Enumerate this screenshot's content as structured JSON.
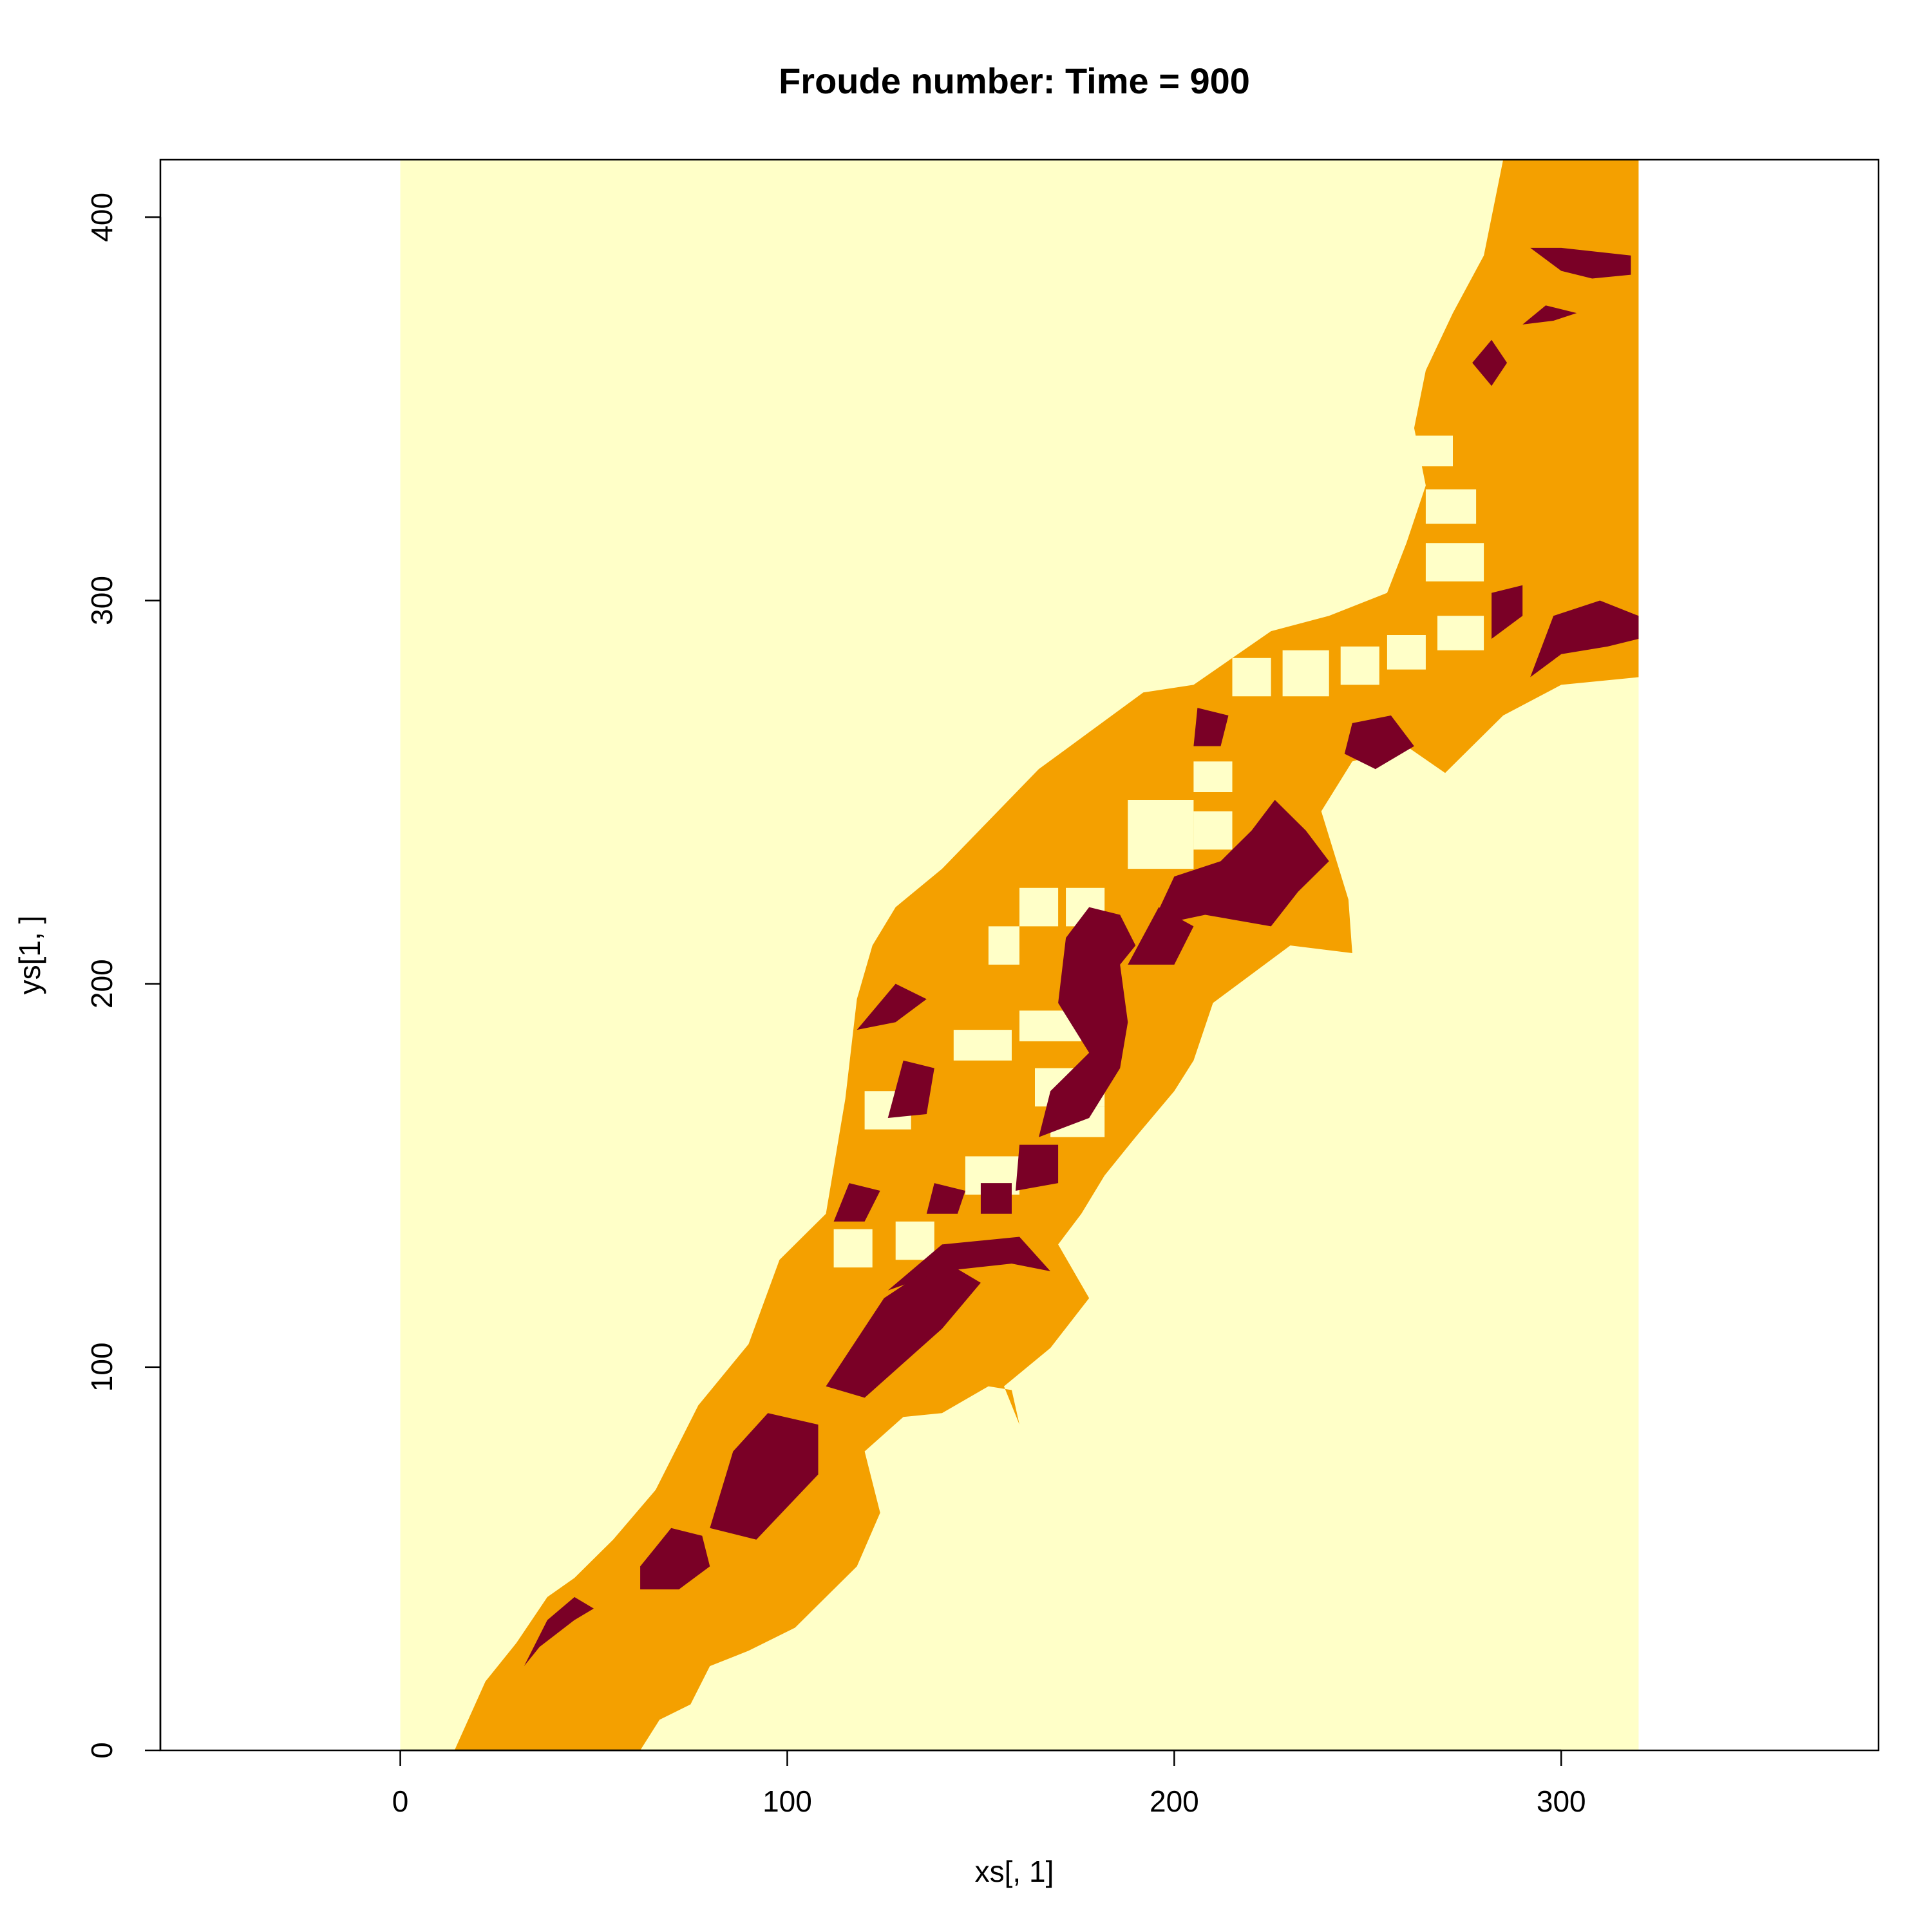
{
  "chart_data": {
    "type": "heatmap",
    "title": "Froude number: Time = 900",
    "xlabel": "xs[, 1]",
    "ylabel": "ys[1, ]",
    "xlim": [
      -62,
      382
    ],
    "ylim": [
      0,
      415
    ],
    "grid": false,
    "x_ticks": [
      0,
      100,
      200,
      300
    ],
    "y_ticks": [
      0,
      100,
      200,
      300,
      400
    ],
    "x_tick_labels": [
      "0",
      "100",
      "200",
      "300"
    ],
    "y_tick_labels": [
      "0",
      "100",
      "200",
      "300",
      "400"
    ],
    "raster_extent": {
      "x": [
        0,
        320
      ],
      "y": [
        0,
        415
      ]
    },
    "colors": {
      "low": "#FFFFC8",
      "mid": "#F4A000",
      "high": "#7A0026"
    },
    "regions": {
      "channel": [
        [
          14,
          0
        ],
        [
          62,
          0
        ],
        [
          67,
          8
        ],
        [
          75,
          12
        ],
        [
          80,
          22
        ],
        [
          90,
          26
        ],
        [
          102,
          32
        ],
        [
          110,
          40
        ],
        [
          118,
          48
        ],
        [
          124,
          62
        ],
        [
          120,
          78
        ],
        [
          130,
          87
        ],
        [
          140,
          88
        ],
        [
          152,
          95
        ],
        [
          158,
          94
        ],
        [
          160,
          85
        ],
        [
          156,
          95
        ],
        [
          168,
          105
        ],
        [
          178,
          118
        ],
        [
          170,
          132
        ],
        [
          176,
          140
        ],
        [
          182,
          150
        ],
        [
          190,
          160
        ],
        [
          200,
          172
        ],
        [
          205,
          180
        ],
        [
          210,
          195
        ],
        [
          230,
          210
        ],
        [
          246,
          208
        ],
        [
          245,
          222
        ],
        [
          238,
          245
        ],
        [
          246,
          258
        ],
        [
          260,
          262
        ],
        [
          270,
          255
        ],
        [
          285,
          270
        ],
        [
          300,
          278
        ],
        [
          320,
          280
        ],
        [
          320,
          415
        ],
        [
          285,
          415
        ],
        [
          280,
          390
        ],
        [
          272,
          375
        ],
        [
          265,
          360
        ],
        [
          262,
          345
        ],
        [
          265,
          330
        ],
        [
          260,
          315
        ],
        [
          255,
          302
        ],
        [
          240,
          296
        ],
        [
          225,
          292
        ],
        [
          205,
          278
        ],
        [
          192,
          276
        ],
        [
          165,
          256
        ],
        [
          140,
          230
        ],
        [
          128,
          220
        ],
        [
          122,
          210
        ],
        [
          118,
          196
        ],
        [
          115,
          170
        ],
        [
          110,
          140
        ],
        [
          98,
          128
        ],
        [
          90,
          106
        ],
        [
          77,
          90
        ],
        [
          66,
          68
        ],
        [
          55,
          55
        ],
        [
          45,
          45
        ],
        [
          38,
          40
        ],
        [
          30,
          28
        ],
        [
          22,
          18
        ],
        [
          14,
          0
        ]
      ],
      "hotspots": [
        [
          [
            32,
            22
          ],
          [
            36,
            27
          ],
          [
            45,
            34
          ],
          [
            50,
            37
          ],
          [
            45,
            40
          ],
          [
            38,
            34
          ],
          [
            32,
            22
          ]
        ],
        [
          [
            62,
            42
          ],
          [
            72,
            42
          ],
          [
            80,
            48
          ],
          [
            78,
            56
          ],
          [
            70,
            58
          ],
          [
            62,
            48
          ],
          [
            62,
            42
          ]
        ],
        [
          [
            80,
            58
          ],
          [
            92,
            55
          ],
          [
            108,
            72
          ],
          [
            108,
            85
          ],
          [
            95,
            88
          ],
          [
            86,
            78
          ],
          [
            80,
            58
          ]
        ],
        [
          [
            110,
            95
          ],
          [
            120,
            92
          ],
          [
            140,
            110
          ],
          [
            150,
            122
          ],
          [
            140,
            128
          ],
          [
            125,
            118
          ],
          [
            110,
            95
          ]
        ],
        [
          [
            126,
            120
          ],
          [
            140,
            125
          ],
          [
            158,
            127
          ],
          [
            168,
            125
          ],
          [
            160,
            134
          ],
          [
            140,
            132
          ],
          [
            126,
            120
          ]
        ],
        [
          [
            112,
            138
          ],
          [
            120,
            138
          ],
          [
            124,
            146
          ],
          [
            116,
            148
          ],
          [
            112,
            138
          ]
        ],
        [
          [
            126,
            165
          ],
          [
            136,
            166
          ],
          [
            138,
            178
          ],
          [
            130,
            180
          ],
          [
            126,
            165
          ]
        ],
        [
          [
            118,
            188
          ],
          [
            128,
            190
          ],
          [
            136,
            196
          ],
          [
            128,
            200
          ],
          [
            118,
            188
          ]
        ],
        [
          [
            165,
            160
          ],
          [
            178,
            165
          ],
          [
            186,
            178
          ],
          [
            188,
            190
          ],
          [
            186,
            205
          ],
          [
            190,
            210
          ],
          [
            186,
            218
          ],
          [
            178,
            220
          ],
          [
            172,
            212
          ],
          [
            170,
            195
          ],
          [
            178,
            182
          ],
          [
            168,
            172
          ],
          [
            165,
            160
          ]
        ],
        [
          [
            188,
            205
          ],
          [
            200,
            205
          ],
          [
            205,
            215
          ],
          [
            196,
            220
          ],
          [
            188,
            205
          ]
        ],
        [
          [
            194,
            215
          ],
          [
            208,
            218
          ],
          [
            225,
            215
          ],
          [
            232,
            224
          ],
          [
            240,
            232
          ],
          [
            234,
            240
          ],
          [
            226,
            248
          ],
          [
            220,
            240
          ],
          [
            212,
            232
          ],
          [
            200,
            228
          ],
          [
            194,
            215
          ]
        ],
        [
          [
            244,
            260
          ],
          [
            252,
            256
          ],
          [
            262,
            262
          ],
          [
            256,
            270
          ],
          [
            246,
            268
          ],
          [
            244,
            260
          ]
        ],
        [
          [
            292,
            280
          ],
          [
            300,
            286
          ],
          [
            312,
            288
          ],
          [
            320,
            290
          ],
          [
            320,
            296
          ],
          [
            310,
            300
          ],
          [
            298,
            296
          ],
          [
            292,
            280
          ]
        ],
        [
          [
            282,
            290
          ],
          [
            290,
            296
          ],
          [
            290,
            304
          ],
          [
            282,
            302
          ],
          [
            282,
            290
          ]
        ],
        [
          [
            292,
            392
          ],
          [
            300,
            386
          ],
          [
            308,
            384
          ],
          [
            318,
            385
          ],
          [
            318,
            390
          ],
          [
            300,
            392
          ],
          [
            292,
            392
          ]
        ],
        [
          [
            277,
            362
          ],
          [
            282,
            356
          ],
          [
            286,
            362
          ],
          [
            282,
            368
          ],
          [
            277,
            362
          ]
        ],
        [
          [
            290,
            372
          ],
          [
            298,
            373
          ],
          [
            304,
            375
          ],
          [
            296,
            377
          ],
          [
            290,
            372
          ]
        ],
        [
          [
            205,
            262
          ],
          [
            212,
            262
          ],
          [
            214,
            270
          ],
          [
            206,
            272
          ],
          [
            205,
            262
          ]
        ],
        [
          [
            136,
            140
          ],
          [
            144,
            140
          ],
          [
            146,
            146
          ],
          [
            138,
            148
          ],
          [
            136,
            140
          ]
        ],
        [
          [
            159,
            146
          ],
          [
            170,
            148
          ],
          [
            170,
            158
          ],
          [
            160,
            158
          ],
          [
            159,
            146
          ]
        ],
        [
          [
            150,
            140
          ],
          [
            158,
            140
          ],
          [
            158,
            148
          ],
          [
            150,
            148
          ],
          [
            150,
            140
          ]
        ]
      ],
      "blocks": [
        [
          [
            215,
            275
          ],
          [
            225,
            275
          ],
          [
            225,
            285
          ],
          [
            215,
            285
          ],
          [
            215,
            275
          ]
        ],
        [
          [
            228,
            275
          ],
          [
            240,
            275
          ],
          [
            240,
            287
          ],
          [
            228,
            287
          ],
          [
            228,
            275
          ]
        ],
        [
          [
            243,
            278
          ],
          [
            253,
            278
          ],
          [
            253,
            288
          ],
          [
            243,
            288
          ],
          [
            243,
            278
          ]
        ],
        [
          [
            255,
            282
          ],
          [
            265,
            282
          ],
          [
            265,
            291
          ],
          [
            255,
            291
          ],
          [
            255,
            282
          ]
        ],
        [
          [
            268,
            287
          ],
          [
            280,
            287
          ],
          [
            280,
            296
          ],
          [
            268,
            296
          ],
          [
            268,
            287
          ]
        ],
        [
          [
            265,
            305
          ],
          [
            280,
            305
          ],
          [
            280,
            315
          ],
          [
            265,
            315
          ],
          [
            265,
            305
          ]
        ],
        [
          [
            265,
            320
          ],
          [
            278,
            320
          ],
          [
            278,
            329
          ],
          [
            265,
            329
          ],
          [
            265,
            320
          ]
        ],
        [
          [
            260,
            335
          ],
          [
            272,
            335
          ],
          [
            272,
            343
          ],
          [
            260,
            343
          ],
          [
            260,
            335
          ]
        ],
        [
          [
            188,
            230
          ],
          [
            205,
            230
          ],
          [
            205,
            248
          ],
          [
            188,
            248
          ],
          [
            188,
            230
          ]
        ],
        [
          [
            205,
            235
          ],
          [
            215,
            235
          ],
          [
            215,
            245
          ],
          [
            205,
            245
          ],
          [
            205,
            235
          ]
        ],
        [
          [
            205,
            250
          ],
          [
            215,
            250
          ],
          [
            215,
            258
          ],
          [
            205,
            258
          ],
          [
            205,
            250
          ]
        ],
        [
          [
            172,
            215
          ],
          [
            182,
            215
          ],
          [
            182,
            225
          ],
          [
            172,
            225
          ],
          [
            172,
            215
          ]
        ],
        [
          [
            160,
            215
          ],
          [
            170,
            215
          ],
          [
            170,
            225
          ],
          [
            160,
            225
          ],
          [
            160,
            215
          ]
        ],
        [
          [
            152,
            205
          ],
          [
            160,
            205
          ],
          [
            160,
            215
          ],
          [
            152,
            215
          ],
          [
            152,
            205
          ]
        ],
        [
          [
            160,
            185
          ],
          [
            176,
            185
          ],
          [
            176,
            193
          ],
          [
            160,
            193
          ],
          [
            160,
            185
          ]
        ],
        [
          [
            143,
            180
          ],
          [
            158,
            180
          ],
          [
            158,
            188
          ],
          [
            143,
            188
          ],
          [
            143,
            180
          ]
        ],
        [
          [
            164,
            168
          ],
          [
            182,
            168
          ],
          [
            182,
            178
          ],
          [
            164,
            178
          ],
          [
            164,
            168
          ]
        ],
        [
          [
            168,
            160
          ],
          [
            182,
            160
          ],
          [
            182,
            168
          ],
          [
            168,
            168
          ],
          [
            168,
            160
          ]
        ],
        [
          [
            120,
            162
          ],
          [
            132,
            162
          ],
          [
            132,
            172
          ],
          [
            120,
            172
          ],
          [
            120,
            162
          ]
        ],
        [
          [
            146,
            145
          ],
          [
            160,
            145
          ],
          [
            160,
            155
          ],
          [
            146,
            155
          ],
          [
            146,
            145
          ]
        ],
        [
          [
            128,
            128
          ],
          [
            138,
            128
          ],
          [
            138,
            138
          ],
          [
            128,
            138
          ],
          [
            128,
            128
          ]
        ],
        [
          [
            112,
            126
          ],
          [
            122,
            126
          ],
          [
            122,
            136
          ],
          [
            112,
            136
          ],
          [
            112,
            126
          ]
        ]
      ]
    }
  }
}
